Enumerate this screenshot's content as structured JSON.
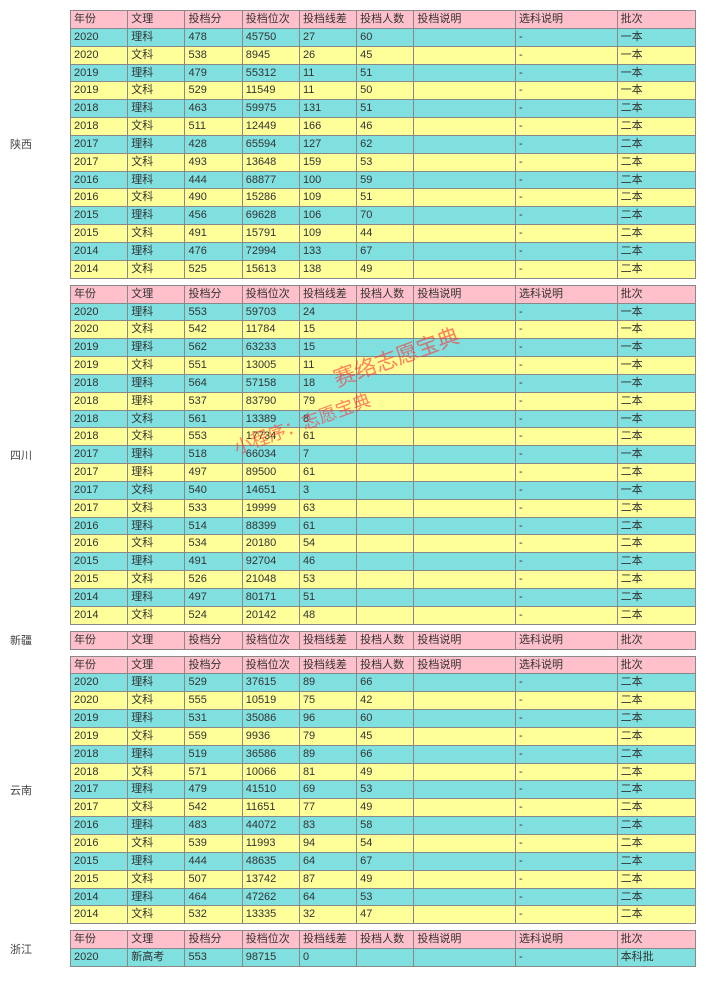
{
  "columns": [
    {
      "key": "year",
      "label": "年份",
      "cls": "col-year"
    },
    {
      "key": "type",
      "label": "文理",
      "cls": "col-type"
    },
    {
      "key": "score",
      "label": "投档分",
      "cls": "col-score"
    },
    {
      "key": "rank",
      "label": "投档位次",
      "cls": "col-rank"
    },
    {
      "key": "diff",
      "label": "投档线差",
      "cls": "col-diff"
    },
    {
      "key": "count",
      "label": "投档人数",
      "cls": "col-count"
    },
    {
      "key": "desc1",
      "label": "投档说明",
      "cls": "col-desc1"
    },
    {
      "key": "desc2",
      "label": "选科说明",
      "cls": "col-desc2"
    },
    {
      "key": "batch",
      "label": "批次",
      "cls": "col-batch"
    }
  ],
  "colors": {
    "header_bg": "#ffc0cb",
    "row_a": "#80e0e0",
    "row_b": "#ffff99",
    "watermark": "#ff3333"
  },
  "watermarks": [
    {
      "text": "赛络志愿宝典",
      "cls": "wm1"
    },
    {
      "text": "小程序：志愿宝典",
      "cls": "wm2"
    }
  ],
  "blocks": [
    {
      "region": "陕西",
      "rows": [
        {
          "year": "2020",
          "type": "理科",
          "score": "478",
          "rank": "45750",
          "diff": "27",
          "count": "60",
          "desc1": "",
          "desc2": "-",
          "batch": "一本"
        },
        {
          "year": "2020",
          "type": "文科",
          "score": "538",
          "rank": "8945",
          "diff": "26",
          "count": "45",
          "desc1": "",
          "desc2": "-",
          "batch": "一本"
        },
        {
          "year": "2019",
          "type": "理科",
          "score": "479",
          "rank": "55312",
          "diff": "11",
          "count": "51",
          "desc1": "",
          "desc2": "-",
          "batch": "一本"
        },
        {
          "year": "2019",
          "type": "文科",
          "score": "529",
          "rank": "11549",
          "diff": "11",
          "count": "50",
          "desc1": "",
          "desc2": "-",
          "batch": "一本"
        },
        {
          "year": "2018",
          "type": "理科",
          "score": "463",
          "rank": "59975",
          "diff": "131",
          "count": "51",
          "desc1": "",
          "desc2": "-",
          "batch": "二本"
        },
        {
          "year": "2018",
          "type": "文科",
          "score": "511",
          "rank": "12449",
          "diff": "166",
          "count": "46",
          "desc1": "",
          "desc2": "-",
          "batch": "二本"
        },
        {
          "year": "2017",
          "type": "理科",
          "score": "428",
          "rank": "65594",
          "diff": "127",
          "count": "62",
          "desc1": "",
          "desc2": "-",
          "batch": "二本"
        },
        {
          "year": "2017",
          "type": "文科",
          "score": "493",
          "rank": "13648",
          "diff": "159",
          "count": "53",
          "desc1": "",
          "desc2": "-",
          "batch": "二本"
        },
        {
          "year": "2016",
          "type": "理科",
          "score": "444",
          "rank": "68877",
          "diff": "100",
          "count": "59",
          "desc1": "",
          "desc2": "-",
          "batch": "二本"
        },
        {
          "year": "2016",
          "type": "文科",
          "score": "490",
          "rank": "15286",
          "diff": "109",
          "count": "51",
          "desc1": "",
          "desc2": "-",
          "batch": "二本"
        },
        {
          "year": "2015",
          "type": "理科",
          "score": "456",
          "rank": "69628",
          "diff": "106",
          "count": "70",
          "desc1": "",
          "desc2": "-",
          "batch": "二本"
        },
        {
          "year": "2015",
          "type": "文科",
          "score": "491",
          "rank": "15791",
          "diff": "109",
          "count": "44",
          "desc1": "",
          "desc2": "-",
          "batch": "二本"
        },
        {
          "year": "2014",
          "type": "理科",
          "score": "476",
          "rank": "72994",
          "diff": "133",
          "count": "67",
          "desc1": "",
          "desc2": "-",
          "batch": "二本"
        },
        {
          "year": "2014",
          "type": "文科",
          "score": "525",
          "rank": "15613",
          "diff": "138",
          "count": "49",
          "desc1": "",
          "desc2": "-",
          "batch": "二本"
        }
      ]
    },
    {
      "region": "四川",
      "rows": [
        {
          "year": "2020",
          "type": "理科",
          "score": "553",
          "rank": "59703",
          "diff": "24",
          "count": "",
          "desc1": "",
          "desc2": "-",
          "batch": "一本"
        },
        {
          "year": "2020",
          "type": "文科",
          "score": "542",
          "rank": "11784",
          "diff": "15",
          "count": "",
          "desc1": "",
          "desc2": "-",
          "batch": "一本"
        },
        {
          "year": "2019",
          "type": "理科",
          "score": "562",
          "rank": "63233",
          "diff": "15",
          "count": "",
          "desc1": "",
          "desc2": "-",
          "batch": "一本"
        },
        {
          "year": "2019",
          "type": "文科",
          "score": "551",
          "rank": "13005",
          "diff": "11",
          "count": "",
          "desc1": "",
          "desc2": "-",
          "batch": "一本"
        },
        {
          "year": "2018",
          "type": "理科",
          "score": "564",
          "rank": "57158",
          "diff": "18",
          "count": "",
          "desc1": "",
          "desc2": "-",
          "batch": "一本"
        },
        {
          "year": "2018",
          "type": "理科",
          "score": "537",
          "rank": "83790",
          "diff": "79",
          "count": "",
          "desc1": "",
          "desc2": "-",
          "batch": "二本"
        },
        {
          "year": "2018",
          "type": "文科",
          "score": "561",
          "rank": "13389",
          "diff": "8",
          "count": "",
          "desc1": "",
          "desc2": "-",
          "batch": "一本"
        },
        {
          "year": "2018",
          "type": "文科",
          "score": "553",
          "rank": "17734",
          "diff": "61",
          "count": "",
          "desc1": "",
          "desc2": "-",
          "batch": "二本"
        },
        {
          "year": "2017",
          "type": "理科",
          "score": "518",
          "rank": "66034",
          "diff": "7",
          "count": "",
          "desc1": "",
          "desc2": "-",
          "batch": "一本"
        },
        {
          "year": "2017",
          "type": "理科",
          "score": "497",
          "rank": "89500",
          "diff": "61",
          "count": "",
          "desc1": "",
          "desc2": "-",
          "batch": "二本"
        },
        {
          "year": "2017",
          "type": "文科",
          "score": "540",
          "rank": "14651",
          "diff": "3",
          "count": "",
          "desc1": "",
          "desc2": "-",
          "batch": "一本"
        },
        {
          "year": "2017",
          "type": "文科",
          "score": "533",
          "rank": "19999",
          "diff": "63",
          "count": "",
          "desc1": "",
          "desc2": "-",
          "batch": "二本"
        },
        {
          "year": "2016",
          "type": "理科",
          "score": "514",
          "rank": "88399",
          "diff": "61",
          "count": "",
          "desc1": "",
          "desc2": "-",
          "batch": "二本"
        },
        {
          "year": "2016",
          "type": "文科",
          "score": "534",
          "rank": "20180",
          "diff": "54",
          "count": "",
          "desc1": "",
          "desc2": "-",
          "batch": "二本"
        },
        {
          "year": "2015",
          "type": "理科",
          "score": "491",
          "rank": "92704",
          "diff": "46",
          "count": "",
          "desc1": "",
          "desc2": "-",
          "batch": "二本"
        },
        {
          "year": "2015",
          "type": "文科",
          "score": "526",
          "rank": "21048",
          "diff": "53",
          "count": "",
          "desc1": "",
          "desc2": "-",
          "batch": "二本"
        },
        {
          "year": "2014",
          "type": "理科",
          "score": "497",
          "rank": "80171",
          "diff": "51",
          "count": "",
          "desc1": "",
          "desc2": "-",
          "batch": "二本"
        },
        {
          "year": "2014",
          "type": "文科",
          "score": "524",
          "rank": "20142",
          "diff": "48",
          "count": "",
          "desc1": "",
          "desc2": "-",
          "batch": "二本"
        }
      ]
    },
    {
      "region": "新疆",
      "rows": []
    },
    {
      "region": "云南",
      "rows": [
        {
          "year": "2020",
          "type": "理科",
          "score": "529",
          "rank": "37615",
          "diff": "89",
          "count": "66",
          "desc1": "",
          "desc2": "-",
          "batch": "二本"
        },
        {
          "year": "2020",
          "type": "文科",
          "score": "555",
          "rank": "10519",
          "diff": "75",
          "count": "42",
          "desc1": "",
          "desc2": "-",
          "batch": "二本"
        },
        {
          "year": "2019",
          "type": "理科",
          "score": "531",
          "rank": "35086",
          "diff": "96",
          "count": "60",
          "desc1": "",
          "desc2": "-",
          "batch": "二本"
        },
        {
          "year": "2019",
          "type": "文科",
          "score": "559",
          "rank": "9936",
          "diff": "79",
          "count": "45",
          "desc1": "",
          "desc2": "-",
          "batch": "二本"
        },
        {
          "year": "2018",
          "type": "理科",
          "score": "519",
          "rank": "36586",
          "diff": "89",
          "count": "66",
          "desc1": "",
          "desc2": "-",
          "batch": "二本"
        },
        {
          "year": "2018",
          "type": "文科",
          "score": "571",
          "rank": "10066",
          "diff": "81",
          "count": "49",
          "desc1": "",
          "desc2": "-",
          "batch": "二本"
        },
        {
          "year": "2017",
          "type": "理科",
          "score": "479",
          "rank": "41510",
          "diff": "69",
          "count": "53",
          "desc1": "",
          "desc2": "-",
          "batch": "二本"
        },
        {
          "year": "2017",
          "type": "文科",
          "score": "542",
          "rank": "11651",
          "diff": "77",
          "count": "49",
          "desc1": "",
          "desc2": "-",
          "batch": "二本"
        },
        {
          "year": "2016",
          "type": "理科",
          "score": "483",
          "rank": "44072",
          "diff": "83",
          "count": "58",
          "desc1": "",
          "desc2": "-",
          "batch": "二本"
        },
        {
          "year": "2016",
          "type": "文科",
          "score": "539",
          "rank": "11993",
          "diff": "94",
          "count": "54",
          "desc1": "",
          "desc2": "-",
          "batch": "二本"
        },
        {
          "year": "2015",
          "type": "理科",
          "score": "444",
          "rank": "48635",
          "diff": "64",
          "count": "67",
          "desc1": "",
          "desc2": "-",
          "batch": "二本"
        },
        {
          "year": "2015",
          "type": "文科",
          "score": "507",
          "rank": "13742",
          "diff": "87",
          "count": "49",
          "desc1": "",
          "desc2": "-",
          "batch": "二本"
        },
        {
          "year": "2014",
          "type": "理科",
          "score": "464",
          "rank": "47262",
          "diff": "64",
          "count": "53",
          "desc1": "",
          "desc2": "-",
          "batch": "二本"
        },
        {
          "year": "2014",
          "type": "文科",
          "score": "532",
          "rank": "13335",
          "diff": "32",
          "count": "47",
          "desc1": "",
          "desc2": "-",
          "batch": "二本"
        }
      ]
    },
    {
      "region": "浙江",
      "rows": [
        {
          "year": "2020",
          "type": "新高考",
          "score": "553",
          "rank": "98715",
          "diff": "0",
          "count": "",
          "desc1": "",
          "desc2": "-",
          "batch": "本科批"
        }
      ]
    }
  ]
}
